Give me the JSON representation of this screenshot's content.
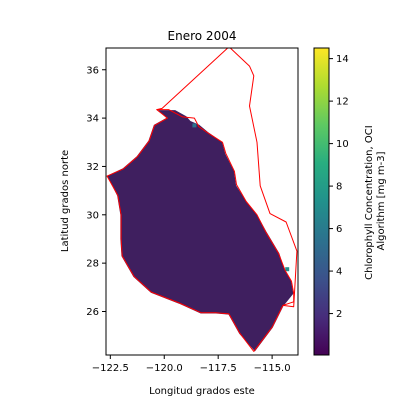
{
  "chart_data": {
    "type": "heatmap",
    "title": "Enero 2004",
    "xlabel": "Longitud grados este",
    "ylabel": "Latitud grados norte",
    "xlim": [
      -122.7,
      -113.8
    ],
    "ylim": [
      24.2,
      36.9
    ],
    "xticks": [
      -122.5,
      -120.0,
      -117.5,
      -115.0
    ],
    "xtick_labels": [
      "−122.5",
      "−120.0",
      "−117.5",
      "−115.0"
    ],
    "yticks": [
      26,
      28,
      30,
      32,
      34,
      36
    ],
    "ytick_labels": [
      "26",
      "28",
      "30",
      "32",
      "34",
      "36"
    ],
    "colorbar": {
      "label": "Chlorophyll Concentration, OCI Algorithm [mg m-3]",
      "label_lines": [
        "Chlorophyll Concentration, OCI",
        "Algorithm [mg m-3]"
      ],
      "colormap": "viridis",
      "range": [
        0.05,
        14.5
      ],
      "ticks": [
        2,
        4,
        6,
        8,
        10,
        12,
        14
      ],
      "tick_labels": [
        "2",
        "4",
        "6",
        "8",
        "10",
        "12",
        "14"
      ]
    },
    "data_region_color": "#3f1f5f",
    "region_boundary_color": "#ff0000",
    "region_boundary": [
      [
        -120.35,
        34.35
      ],
      [
        -119.8,
        34.35
      ],
      [
        -119.15,
        34.05
      ],
      [
        -118.6,
        34.0
      ],
      [
        -118.4,
        33.65
      ],
      [
        -118.0,
        33.4
      ],
      [
        -117.3,
        33.0
      ],
      [
        -117.15,
        32.55
      ],
      [
        -116.75,
        31.8
      ],
      [
        -116.65,
        31.25
      ],
      [
        -116.2,
        30.55
      ],
      [
        -115.7,
        30.0
      ],
      [
        -115.3,
        29.3
      ],
      [
        -114.7,
        28.4
      ],
      [
        -114.4,
        27.7
      ],
      [
        -114.1,
        27.25
      ],
      [
        -114.0,
        26.75
      ],
      [
        -114.0,
        26.4
      ],
      [
        -114.5,
        26.25
      ],
      [
        -115.0,
        25.35
      ],
      [
        -115.85,
        24.35
      ],
      [
        -116.5,
        25.1
      ],
      [
        -117.0,
        25.9
      ],
      [
        -117.6,
        25.95
      ],
      [
        -118.3,
        25.95
      ],
      [
        -119.3,
        26.35
      ],
      [
        -120.6,
        26.8
      ],
      [
        -121.4,
        27.45
      ],
      [
        -121.95,
        28.3
      ],
      [
        -122.0,
        29.0
      ],
      [
        -122.0,
        30.0
      ],
      [
        -122.15,
        30.8
      ],
      [
        -122.65,
        31.6
      ],
      [
        -121.9,
        31.9
      ],
      [
        -121.25,
        32.4
      ],
      [
        -120.7,
        33.05
      ],
      [
        -120.45,
        33.7
      ],
      [
        -119.85,
        34.0
      ],
      [
        -120.35,
        34.35
      ],
      [
        -120.1,
        34.4
      ],
      [
        -117.0,
        36.95
      ],
      [
        -116.05,
        36.15
      ],
      [
        -115.85,
        35.75
      ],
      [
        -116.05,
        34.5
      ],
      [
        -115.7,
        33.0
      ],
      [
        -115.55,
        31.2
      ],
      [
        -115.1,
        30.05
      ],
      [
        -114.35,
        29.7
      ],
      [
        -113.85,
        28.5
      ],
      [
        -114.0,
        26.2
      ],
      [
        -114.5,
        26.25
      ]
    ],
    "data_region": [
      [
        -120.2,
        34.3
      ],
      [
        -119.5,
        34.3
      ],
      [
        -119.0,
        34.05
      ],
      [
        -118.8,
        33.85
      ],
      [
        -118.4,
        33.7
      ],
      [
        -118.0,
        33.4
      ],
      [
        -117.35,
        33.0
      ],
      [
        -117.2,
        32.5
      ],
      [
        -116.8,
        31.8
      ],
      [
        -116.7,
        31.2
      ],
      [
        -116.2,
        30.5
      ],
      [
        -115.7,
        29.95
      ],
      [
        -115.3,
        29.3
      ],
      [
        -114.7,
        28.4
      ],
      [
        -114.45,
        27.7
      ],
      [
        -114.15,
        27.25
      ],
      [
        -114.05,
        26.75
      ],
      [
        -114.5,
        26.25
      ],
      [
        -115.0,
        25.35
      ],
      [
        -115.8,
        24.4
      ],
      [
        -116.5,
        25.1
      ],
      [
        -117.0,
        25.9
      ],
      [
        -117.6,
        25.95
      ],
      [
        -118.3,
        25.95
      ],
      [
        -119.3,
        26.35
      ],
      [
        -120.6,
        26.8
      ],
      [
        -121.4,
        27.45
      ],
      [
        -121.95,
        28.3
      ],
      [
        -122.0,
        29.0
      ],
      [
        -122.0,
        30.0
      ],
      [
        -122.15,
        30.8
      ],
      [
        -122.6,
        31.6
      ],
      [
        -121.9,
        31.9
      ],
      [
        -121.25,
        32.4
      ],
      [
        -120.7,
        33.05
      ],
      [
        -120.45,
        33.7
      ],
      [
        -119.85,
        34.0
      ]
    ],
    "elevated_pixels": [
      {
        "lon": -114.3,
        "lat": 27.75,
        "value": 7.5
      },
      {
        "lon": -118.6,
        "lat": 33.7,
        "value": 6.0
      }
    ]
  }
}
